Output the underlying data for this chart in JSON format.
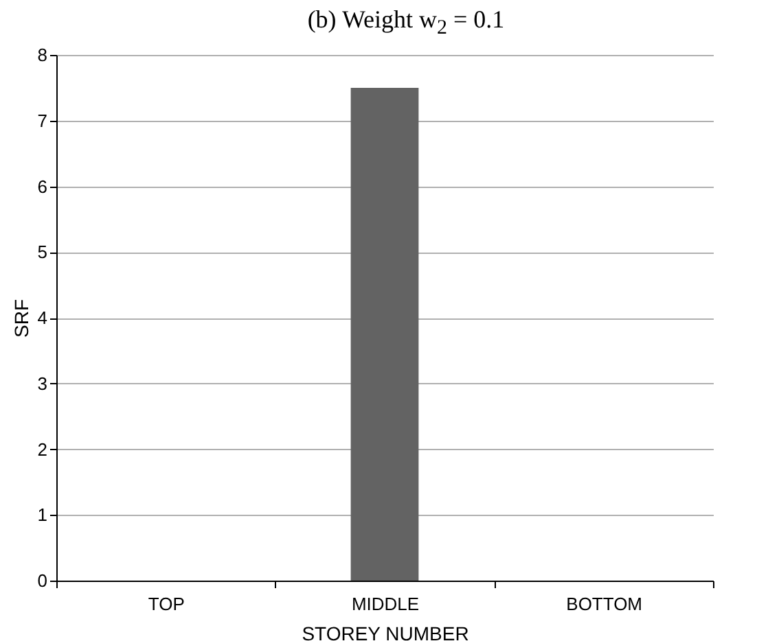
{
  "chart_data": {
    "type": "bar",
    "title": "(b) Weight w$_{2}$ = 0.1",
    "xlabel": "STOREY NUMBER",
    "ylabel": "SRF",
    "categories": [
      "TOP",
      "MIDDLE",
      "BOTTOM"
    ],
    "values": [
      0,
      7.5,
      0
    ],
    "color": "#636363",
    "ylim": [
      0,
      8
    ],
    "yticks": [
      0,
      1,
      2,
      3,
      4,
      5,
      6,
      7,
      8
    ],
    "grid": "y"
  }
}
